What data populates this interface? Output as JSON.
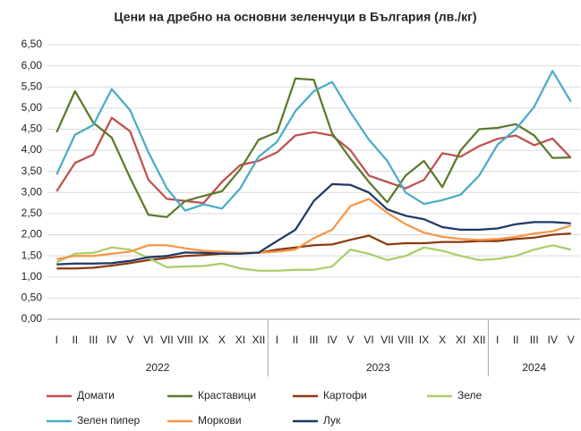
{
  "chart_data": {
    "type": "line",
    "title": "Цени на дребно на основни зеленчуци в България (лв./кг)",
    "categories": [
      "I",
      "II",
      "III",
      "IV",
      "V",
      "VI",
      "VII",
      "VIII",
      "IX",
      "X",
      "XI",
      "XII",
      "I",
      "II",
      "III",
      "IV",
      "V",
      "VI",
      "VII",
      "VIII",
      "IX",
      "X",
      "XI",
      "XII",
      "I",
      "II",
      "III",
      "IV",
      "V"
    ],
    "years": [
      "2022",
      "2023",
      "2024"
    ],
    "ylim": [
      0,
      6.5
    ],
    "yticks": [
      {
        "value": 0,
        "label": "0,00"
      },
      {
        "value": 0.5,
        "label": "0,50"
      },
      {
        "value": 1,
        "label": "1,00"
      },
      {
        "value": 1.5,
        "label": "1,50"
      },
      {
        "value": 2,
        "label": "2,00"
      },
      {
        "value": 2.5,
        "label": "2,50"
      },
      {
        "value": 3,
        "label": "3,00"
      },
      {
        "value": 3.5,
        "label": "3,50"
      },
      {
        "value": 4,
        "label": "4,00"
      },
      {
        "value": 4.5,
        "label": "4,50"
      },
      {
        "value": 5,
        "label": "5,00"
      },
      {
        "value": 5.5,
        "label": "5,50"
      },
      {
        "value": 6,
        "label": "6,00"
      },
      {
        "value": 6.5,
        "label": "6,50"
      }
    ],
    "grid": true,
    "series": [
      {
        "name": "Домати",
        "color": "#c0504d",
        "values": [
          3.03,
          3.7,
          3.9,
          4.77,
          4.45,
          3.3,
          2.85,
          2.8,
          2.75,
          3.25,
          3.65,
          3.75,
          3.95,
          4.35,
          4.43,
          4.35,
          4.0,
          3.4,
          3.25,
          3.1,
          3.3,
          3.93,
          3.85,
          4.1,
          4.27,
          4.35,
          4.12,
          4.28,
          3.82
        ]
      },
      {
        "name": "Краставици",
        "color": "#5b7a2c",
        "values": [
          4.43,
          5.4,
          4.65,
          4.3,
          3.35,
          2.47,
          2.42,
          2.8,
          2.92,
          3.03,
          3.55,
          4.25,
          4.43,
          5.7,
          5.67,
          4.4,
          3.8,
          3.25,
          2.77,
          3.4,
          3.75,
          3.13,
          4.0,
          4.5,
          4.53,
          4.62,
          4.35,
          3.82,
          3.83
        ]
      },
      {
        "name": "Картофи",
        "color": "#8b3a10",
        "values": [
          1.2,
          1.2,
          1.22,
          1.27,
          1.33,
          1.4,
          1.45,
          1.5,
          1.52,
          1.55,
          1.56,
          1.57,
          1.65,
          1.7,
          1.75,
          1.77,
          1.88,
          1.98,
          1.77,
          1.8,
          1.8,
          1.83,
          1.83,
          1.85,
          1.85,
          1.9,
          1.93,
          2.0,
          2.03
        ]
      },
      {
        "name": "Зеле",
        "color": "#a9cf6a",
        "values": [
          1.35,
          1.55,
          1.57,
          1.7,
          1.65,
          1.45,
          1.23,
          1.25,
          1.26,
          1.32,
          1.2,
          1.15,
          1.15,
          1.17,
          1.17,
          1.25,
          1.65,
          1.55,
          1.4,
          1.5,
          1.7,
          1.62,
          1.5,
          1.4,
          1.43,
          1.5,
          1.65,
          1.75,
          1.65
        ]
      },
      {
        "name": "Зелен пипер",
        "color": "#4bacc6",
        "values": [
          3.43,
          4.37,
          4.6,
          5.45,
          4.95,
          3.95,
          3.1,
          2.57,
          2.72,
          2.62,
          3.1,
          3.85,
          4.2,
          4.93,
          5.4,
          5.62,
          4.9,
          4.25,
          3.75,
          3.0,
          2.73,
          2.82,
          2.95,
          3.4,
          4.13,
          4.5,
          5.03,
          5.88,
          5.15
        ]
      },
      {
        "name": "Моркови",
        "color": "#f79646",
        "values": [
          1.42,
          1.5,
          1.5,
          1.55,
          1.6,
          1.75,
          1.75,
          1.68,
          1.62,
          1.6,
          1.57,
          1.57,
          1.6,
          1.65,
          1.92,
          2.12,
          2.68,
          2.85,
          2.52,
          2.25,
          2.05,
          1.95,
          1.9,
          1.88,
          1.9,
          1.95,
          2.03,
          2.08,
          2.22
        ]
      },
      {
        "name": "Лук",
        "color": "#1f3864",
        "values": [
          1.3,
          1.32,
          1.32,
          1.33,
          1.38,
          1.47,
          1.5,
          1.58,
          1.57,
          1.55,
          1.55,
          1.58,
          1.85,
          2.12,
          2.8,
          3.2,
          3.18,
          3.0,
          2.6,
          2.45,
          2.37,
          2.18,
          2.12,
          2.12,
          2.15,
          2.25,
          2.3,
          2.3,
          2.27
        ]
      }
    ]
  }
}
